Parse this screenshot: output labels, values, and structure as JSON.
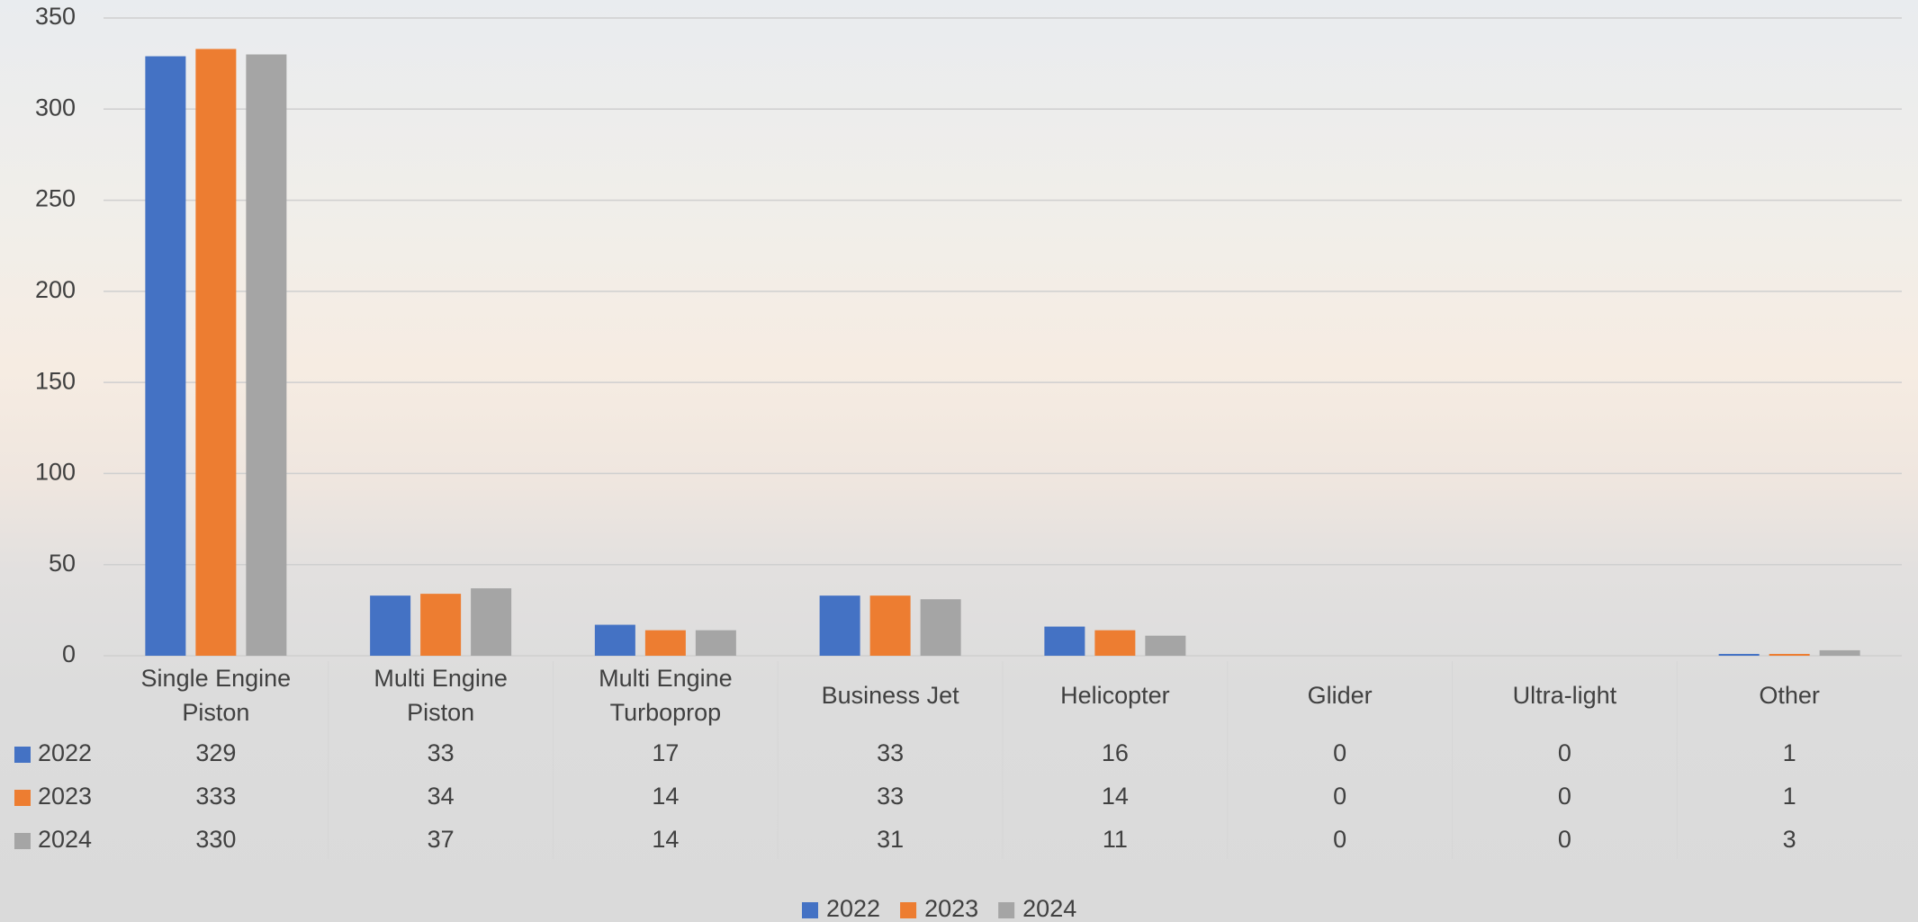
{
  "chart_data": {
    "type": "bar",
    "categories": [
      "Single Engine Piston",
      "Multi Engine Piston",
      "Multi Engine Turboprop",
      "Business Jet",
      "Helicopter",
      "Glider",
      "Ultra-light",
      "Other"
    ],
    "series": [
      {
        "name": "2022",
        "color": "#4472c4",
        "values": [
          329,
          33,
          17,
          33,
          16,
          0,
          0,
          1
        ]
      },
      {
        "name": "2023",
        "color": "#ed7d31",
        "values": [
          333,
          34,
          14,
          33,
          14,
          0,
          0,
          1
        ]
      },
      {
        "name": "2024",
        "color": "#a5a5a5",
        "values": [
          330,
          37,
          14,
          31,
          11,
          0,
          0,
          3
        ]
      }
    ],
    "ylim": [
      0,
      350
    ],
    "yticks": [
      0,
      50,
      100,
      150,
      200,
      250,
      300,
      350
    ],
    "grid": true,
    "data_table": true,
    "legend": "bottom"
  }
}
